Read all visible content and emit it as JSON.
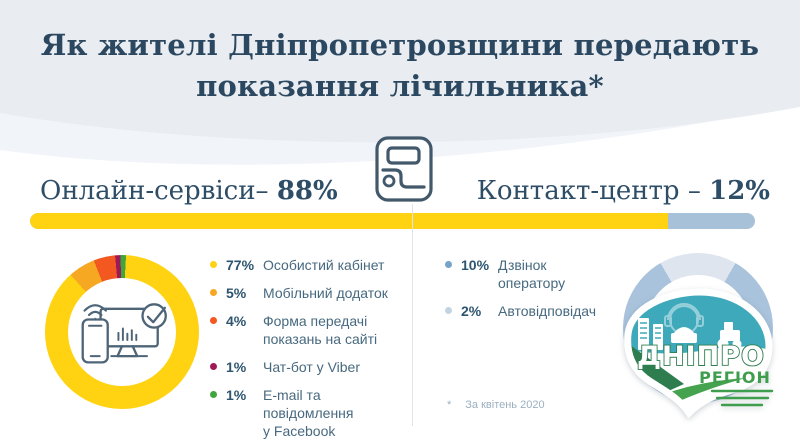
{
  "title": {
    "line1": "Як жителі Дніпропетровщини передають",
    "line2": "показання лічильника*"
  },
  "sections": {
    "online": {
      "label": "Онлайн-сервіси–",
      "value": "88%"
    },
    "contact": {
      "label": "Контакт-центр –",
      "value": "12%"
    }
  },
  "online_items": [
    {
      "pct": "77%",
      "label": "Особистий кабінет",
      "color": "#ffd212"
    },
    {
      "pct": "5%",
      "label": "Мобільний додаток",
      "color": "#f7a823"
    },
    {
      "pct": "4%",
      "label": "Форма передачі\nпоказань на сайті",
      "color": "#f2581f"
    },
    {
      "pct": "1%",
      "label": "Чат-бот у Viber",
      "color": "#9d1a57"
    },
    {
      "pct": "1%",
      "label": "E-mail та\nповідомлення\nу Facebook",
      "color": "#3fa53c"
    }
  ],
  "contact_items": [
    {
      "pct": "10%",
      "label": "Дзвінок\nоператору",
      "color": "#78a3c8"
    },
    {
      "pct": "2%",
      "label": "Автовідповідач",
      "color": "#c2d3e2"
    }
  ],
  "logo": {
    "line1": "ДНІПРО",
    "line2": "РЕГІОН"
  },
  "footnote": {
    "mark": "*",
    "text": "За квітень 2020"
  },
  "colors": {
    "header_bg": "#e9edf2",
    "header_bg_light": "#f1f4f8",
    "title_text": "#2b4860",
    "bar_online": "#ffd212",
    "bar_contact": "#a6c1d8",
    "divider": "#dde4ea",
    "footnote_text": "#9bb0bf"
  },
  "chart_data": [
    {
      "type": "bar",
      "title": "Як жителі Дніпропетровщини передають показання лічильника*",
      "categories": [
        "Онлайн-сервіси",
        "Контакт-центр"
      ],
      "values": [
        88,
        12
      ],
      "unit": "%",
      "colors": [
        "#ffd212",
        "#a6c1d8"
      ]
    },
    {
      "type": "pie",
      "title": "Онлайн-сервіси – 88%",
      "donut": true,
      "start_deg": 3,
      "labels": [
        "Особистий кабінет",
        "Мобільний додаток",
        "Форма передачі показань на сайті",
        "Чат-бот у Viber",
        "E-mail та повідомлення у Facebook"
      ],
      "values": [
        77,
        5,
        4,
        1,
        1
      ],
      "colors": [
        "#ffd212",
        "#f7a823",
        "#f2581f",
        "#9d1a57",
        "#3fa53c"
      ]
    },
    {
      "type": "pie",
      "title": "Контакт-центр – 12%",
      "donut": true,
      "start_deg": -30,
      "labels": [
        "Автовідповідач",
        "Дзвінок оператору"
      ],
      "values": [
        2,
        10
      ],
      "colors": [
        "#dfe5ee",
        "#a9c3dc"
      ]
    }
  ]
}
